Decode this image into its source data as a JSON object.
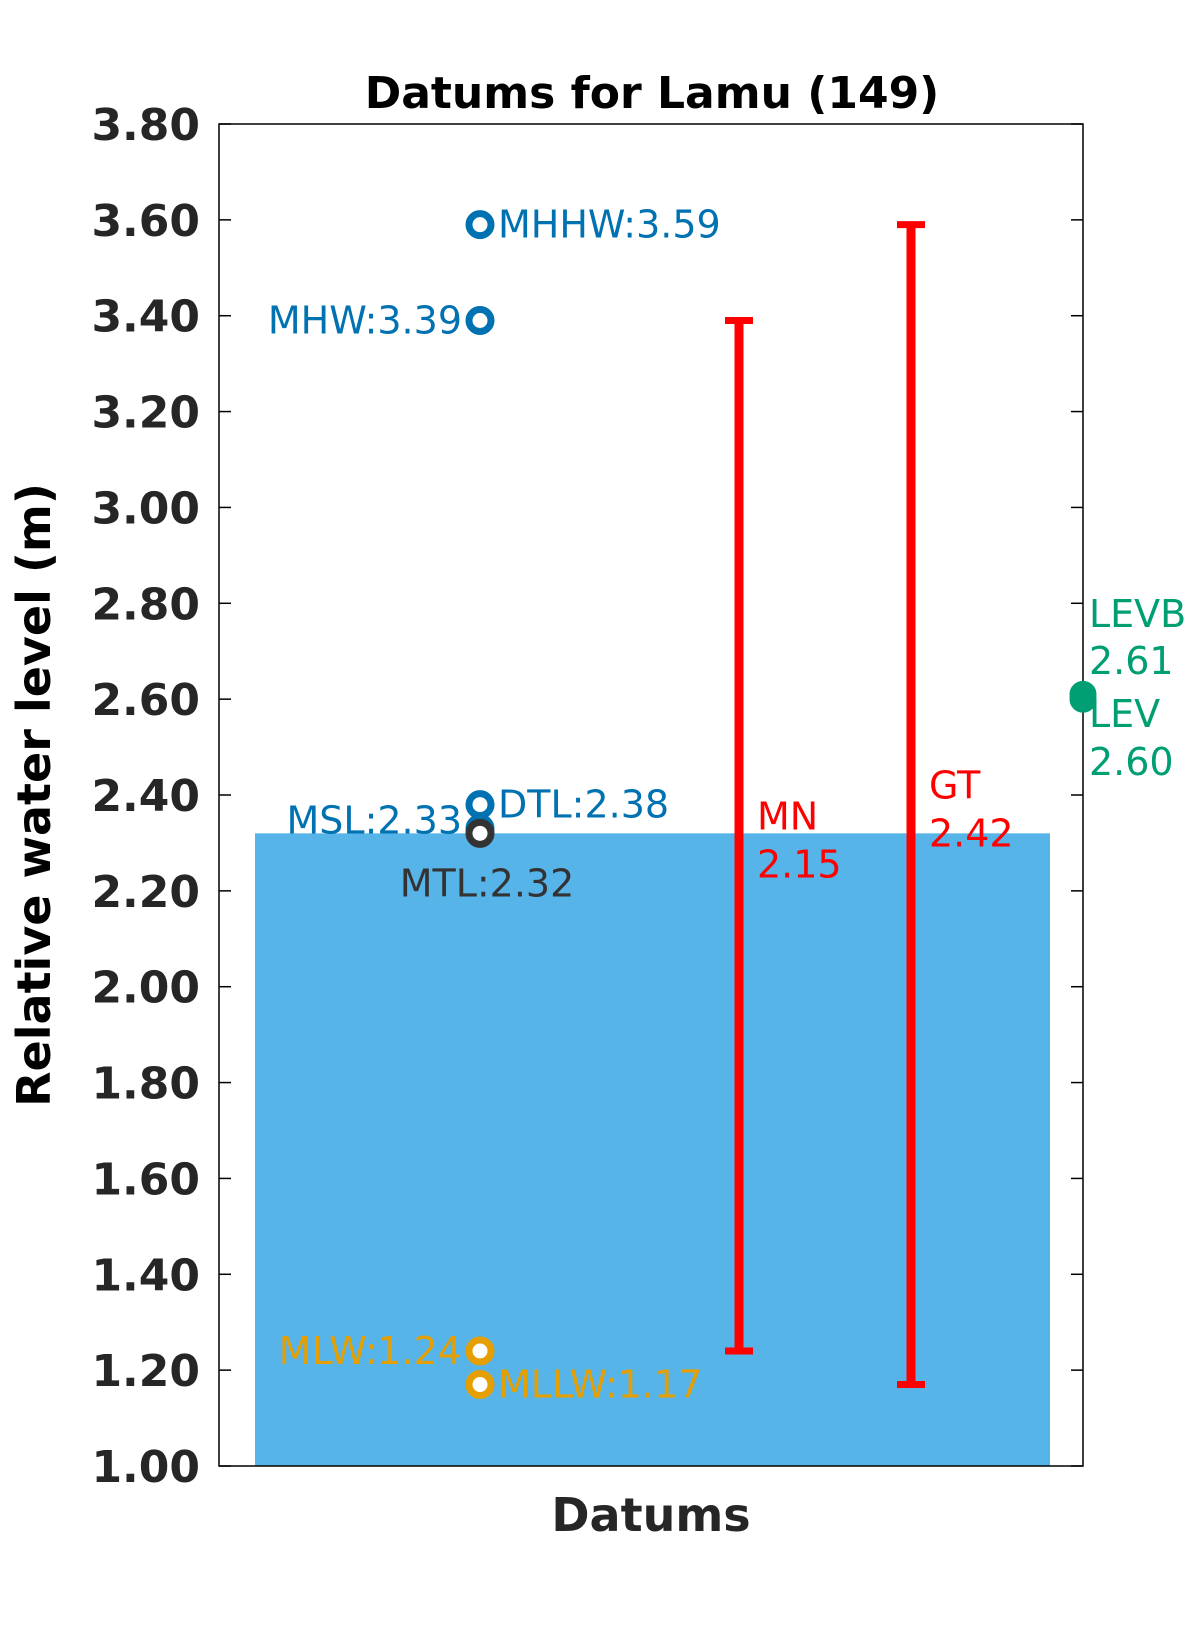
{
  "chart_data": {
    "type": "scatter",
    "title": "Datums for Lamu (149)",
    "xlabel": "Datums",
    "ylabel": "Relative water level (m)",
    "ylim": [
      1.0,
      3.8
    ],
    "yticks": [
      "1.00",
      "1.20",
      "1.40",
      "1.60",
      "1.80",
      "2.00",
      "2.20",
      "2.40",
      "2.60",
      "2.80",
      "3.00",
      "3.20",
      "3.40",
      "3.60",
      "3.80"
    ],
    "background_bar": {
      "value": 2.32,
      "color": "#56B4E9"
    },
    "datums": [
      {
        "id": "mhhw",
        "label": "MHHW:3.59",
        "value": 3.59,
        "color": "#0072B2",
        "label_side": "right"
      },
      {
        "id": "mhw",
        "label": "MHW:3.39",
        "value": 3.39,
        "color": "#0072B2",
        "label_side": "left"
      },
      {
        "id": "dtl",
        "label": "DTL:2.38",
        "value": 2.38,
        "color": "#0072B2",
        "label_side": "right"
      },
      {
        "id": "msl",
        "label": "MSL:2.33",
        "value": 2.33,
        "color": "#0072B2",
        "label_side": "left"
      },
      {
        "id": "mtl",
        "label": "MTL:2.32",
        "value": 2.32,
        "color": "#333333",
        "label_side": "below"
      },
      {
        "id": "mlw",
        "label": "MLW:1.24",
        "value": 1.24,
        "color": "#E69F00",
        "label_side": "left"
      },
      {
        "id": "mllw",
        "label": "MLLW:1.17",
        "value": 1.17,
        "color": "#E69F00",
        "label_side": "right"
      }
    ],
    "ranges": [
      {
        "id": "mn",
        "name": "MN",
        "value_label": "2.15",
        "low": 1.24,
        "high": 3.39,
        "color": "#FF0000"
      },
      {
        "id": "gt",
        "name": "GT",
        "value_label": "2.42",
        "low": 1.17,
        "high": 3.59,
        "color": "#FF0000"
      }
    ],
    "levels": [
      {
        "id": "levb",
        "name": "LEVB",
        "value_label": "2.61",
        "value": 2.61,
        "color": "#009E73"
      },
      {
        "id": "lev",
        "name": "LEV",
        "value_label": "2.60",
        "value": 2.6,
        "color": "#009E73"
      }
    ]
  }
}
